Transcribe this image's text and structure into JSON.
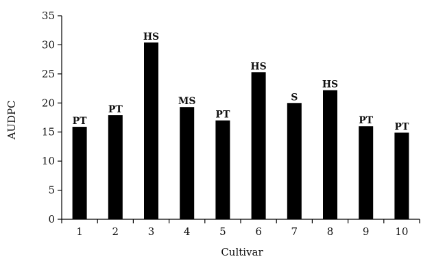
{
  "chart_data": {
    "type": "bar",
    "xlabel": "Cultivar",
    "ylabel": "AUDPC",
    "ylim": [
      0,
      35
    ],
    "yticks": [
      0,
      5,
      10,
      15,
      20,
      25,
      30,
      35
    ],
    "categories": [
      "1",
      "2",
      "3",
      "4",
      "5",
      "6",
      "7",
      "8",
      "9",
      "10"
    ],
    "values": [
      15.9,
      17.9,
      30.4,
      19.3,
      17.0,
      25.3,
      20.0,
      22.2,
      16.0,
      14.9
    ],
    "bar_labels": [
      "PT",
      "PT",
      "HS",
      "MS",
      "PT",
      "HS",
      "S",
      "HS",
      "PT",
      "PT"
    ],
    "bar_color": "#000000",
    "grid": false,
    "legend": "none"
  }
}
